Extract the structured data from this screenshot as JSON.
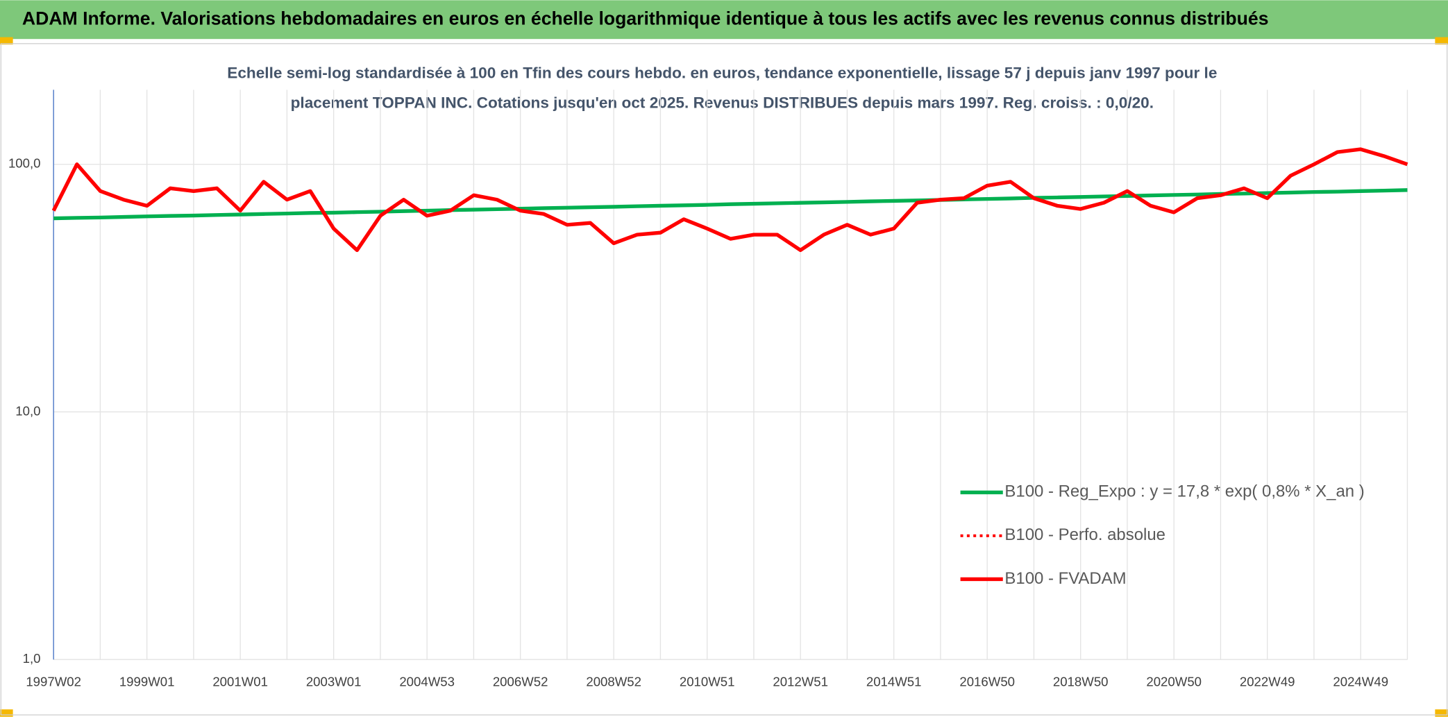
{
  "header": {
    "title": "ADAM Informe. Valorisations hebdomadaires en euros en échelle logarithmique identique à tous les actifs avec les revenus connus distribués"
  },
  "chart_data": {
    "type": "line",
    "subtitle": [
      "Echelle semi-log standardisée à 100 en Tfin des cours hebdo. en euros, tendance exponentielle, lissage 57 j depuis janv 1997 pour le",
      "placement TOPPAN INC. Cotations jusqu'en oct 2025. Revenus DISTRIBUES depuis mars 1997. Reg. croiss. : 0,0/20."
    ],
    "categories": [
      "1997W02",
      null,
      null,
      null,
      "1999W01",
      null,
      null,
      null,
      "2001W01",
      null,
      null,
      null,
      "2003W01",
      null,
      null,
      null,
      "2004W53",
      null,
      null,
      null,
      "2006W52",
      null,
      null,
      null,
      "2008W52",
      null,
      null,
      null,
      "2010W51",
      null,
      null,
      null,
      "2012W51",
      null,
      null,
      null,
      "2014W51",
      null,
      null,
      null,
      "2016W50",
      null,
      null,
      null,
      "2018W50",
      null,
      null,
      null,
      "2020W50",
      null,
      null,
      null,
      "2022W49",
      null,
      null,
      null,
      "2024W49",
      null,
      null
    ],
    "log_scale": true,
    "grid": true,
    "ylim": [
      1,
      200
    ],
    "yticks": [
      {
        "value": 1,
        "label": "1,0"
      },
      {
        "value": 10,
        "label": "10,0"
      },
      {
        "value": 100,
        "label": "100,0"
      }
    ],
    "legend": "right",
    "series": [
      {
        "name": "B100 - Reg_Expo : y = 17,8 * exp( 0,8% *  X_an )",
        "color": "#00b050",
        "style": "solid",
        "values": [
          60.5,
          60.8,
          61.0,
          61.3,
          61.6,
          61.9,
          62.1,
          62.4,
          62.7,
          63.0,
          63.3,
          63.6,
          63.8,
          64.1,
          64.4,
          64.7,
          65.0,
          65.3,
          65.6,
          65.9,
          66.2,
          66.5,
          66.8,
          67.1,
          67.4,
          67.7,
          68.0,
          68.3,
          68.6,
          69.0,
          69.3,
          69.6,
          69.9,
          70.2,
          70.5,
          70.9,
          71.2,
          71.5,
          71.8,
          72.2,
          72.5,
          72.8,
          73.2,
          73.5,
          73.8,
          74.2,
          74.5,
          74.9,
          75.2,
          75.5,
          75.9,
          76.2,
          76.6,
          76.9,
          77.3,
          77.6,
          78.0,
          78.3,
          78.7
        ]
      },
      {
        "name": "B100 - Perfo. absolue",
        "color": "#ff0000",
        "style": "dotted",
        "values": [
          65,
          100,
          78,
          72,
          68,
          80,
          78,
          80,
          65,
          85,
          72,
          78,
          55,
          45,
          62,
          72,
          62,
          65,
          75,
          72,
          65,
          63,
          57,
          58,
          48,
          52,
          53,
          60,
          55,
          50,
          52,
          52,
          45,
          52,
          57,
          52,
          55,
          70,
          72,
          73,
          82,
          85,
          73,
          68,
          66,
          70,
          78,
          68,
          64,
          73,
          75,
          80,
          73,
          90,
          100,
          112,
          115,
          108,
          100
        ]
      },
      {
        "name": "B100 - FVADAM",
        "color": "#ff0000",
        "style": "solid",
        "values": [
          65,
          100,
          78,
          72,
          68,
          80,
          78,
          80,
          65,
          85,
          72,
          78,
          55,
          45,
          62,
          72,
          62,
          65,
          75,
          72,
          65,
          63,
          57,
          58,
          48,
          52,
          53,
          60,
          55,
          50,
          52,
          52,
          45,
          52,
          57,
          52,
          55,
          70,
          72,
          73,
          82,
          85,
          73,
          68,
          66,
          70,
          78,
          68,
          64,
          73,
          75,
          80,
          73,
          90,
          100,
          112,
          115,
          108,
          100
        ]
      }
    ]
  }
}
